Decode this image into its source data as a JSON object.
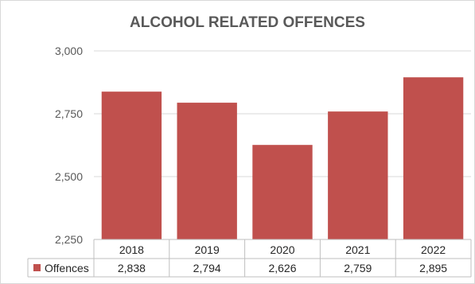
{
  "chart_data": {
    "type": "bar",
    "title": "ALCOHOL RELATED OFFENCES",
    "categories": [
      "2018",
      "2019",
      "2020",
      "2021",
      "2022"
    ],
    "series": [
      {
        "name": "Offences",
        "values": [
          2838,
          2794,
          2626,
          2759,
          2895
        ],
        "color": "#c0504d"
      }
    ],
    "data_labels": [
      "2,838",
      "2,794",
      "2,626",
      "2,759",
      "2,895"
    ],
    "ylim": [
      2250,
      3000
    ],
    "yticks": [
      2250,
      2500,
      2750,
      3000
    ],
    "ytick_labels": [
      "2,250",
      "2,500",
      "2,750",
      "3,000"
    ],
    "grid": true,
    "legend": "data-table",
    "data_table": true
  }
}
